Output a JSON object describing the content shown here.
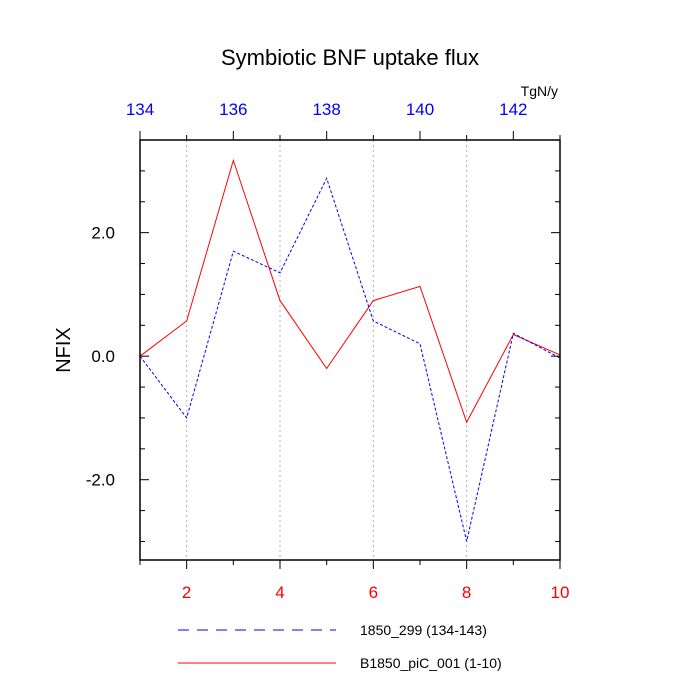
{
  "chart_data": {
    "type": "line",
    "title": "Symbiotic BNF uptake flux",
    "units": "TgN/y",
    "ylabel": "NFIX",
    "xlim": [
      1,
      10
    ],
    "ylim": [
      -3.3,
      3.5
    ],
    "x_ticks": [
      2,
      4,
      6,
      8,
      10
    ],
    "x_tick_labels": [
      "2",
      "4",
      "6",
      "8",
      "10"
    ],
    "x_top_lim": [
      134,
      143
    ],
    "x_top_ticks": [
      134,
      136,
      138,
      140,
      142
    ],
    "x_top_tick_labels": [
      "134",
      "136",
      "138",
      "140",
      "142"
    ],
    "y_ticks": [
      -2,
      0,
      2
    ],
    "y_tick_labels": [
      "-2.0",
      "0.0",
      "2.0"
    ],
    "grid": "vertical dotted at bottom-axis ticks",
    "legend_position": "bottom",
    "colors": {
      "bottom_axis": "#ff0000",
      "top_axis": "#0000ff"
    },
    "series": [
      {
        "name": "1850_299 (134-143)",
        "legend_label": "1850_299 (134-143)",
        "color": "#0000ff",
        "dash": "dashed",
        "x": [
          1,
          2,
          3,
          4,
          5,
          6,
          7,
          8,
          9,
          10
        ],
        "values": [
          0.0,
          -1.0,
          1.7,
          1.35,
          2.88,
          0.57,
          0.2,
          -3.0,
          0.37,
          -0.03
        ]
      },
      {
        "name": "B1850_piC_001 (1-10)",
        "legend_label": "B1850_piC_001 (1-10)",
        "color": "#ff0000",
        "dash": "solid",
        "x": [
          1,
          2,
          3,
          4,
          5,
          6,
          7,
          8,
          9,
          10
        ],
        "values": [
          0.0,
          0.57,
          3.17,
          0.9,
          -0.2,
          0.9,
          1.13,
          -1.07,
          0.35,
          0.02
        ]
      }
    ]
  }
}
